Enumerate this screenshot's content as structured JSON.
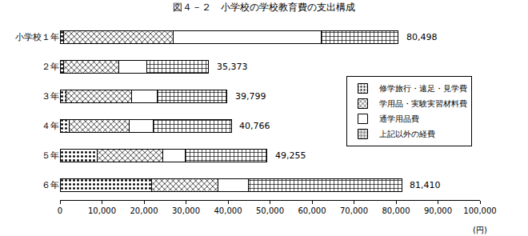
{
  "chart_data": {
    "type": "bar",
    "title": "図４－２　小学校の学校教育費の支出構成",
    "orientation": "horizontal",
    "stacked": true,
    "categories": [
      "小学校１年",
      "２年",
      "３年",
      "４年",
      "５年",
      "６年"
    ],
    "series": [
      {
        "name": "修学旅行・遠足・見学費",
        "color": "#ffffff",
        "marker": "dots",
        "values": [
          800,
          800,
          1500,
          2200,
          8800,
          21800
        ]
      },
      {
        "name": "学用品・実験実習材料費",
        "color": "#ffffff",
        "marker": "crosshatch",
        "values": [
          26200,
          13200,
          15500,
          14300,
          15700,
          15800
        ]
      },
      {
        "name": "通学用品費",
        "color": "#ffffff",
        "marker": "none",
        "values": [
          35200,
          6600,
          6200,
          5700,
          5400,
          7200
        ]
      },
      {
        "name": "上記以外の経費",
        "color": "#ffffff",
        "marker": "grid",
        "values": [
          18298,
          14773,
          16599,
          18566,
          19355,
          36610
        ]
      }
    ],
    "totals": [
      80498,
      35373,
      39799,
      40766,
      49255,
      81410
    ],
    "total_labels": [
      "80,498",
      "35,373",
      "39,799",
      "40,766",
      "49,255",
      "81,410"
    ],
    "xlabel": "(円)",
    "xlim": [
      0,
      100000
    ],
    "xticks": [
      0,
      {
        "value": 10000,
        "label": "10,000"
      },
      {
        "value": 20000,
        "label": "20,000"
      },
      {
        "value": 30000,
        "label": "30,000"
      },
      {
        "value": 40000,
        "label": "40,000"
      },
      {
        "value": 50000,
        "label": "50,000"
      },
      {
        "value": 60000,
        "label": "60,000"
      },
      {
        "value": 70000,
        "label": "70,000"
      },
      {
        "value": 80000,
        "label": "80,000"
      },
      {
        "value": 90000,
        "label": "90,000"
      },
      {
        "value": 100000,
        "label": "100,000"
      }
    ],
    "grid": false,
    "legend": "right"
  }
}
